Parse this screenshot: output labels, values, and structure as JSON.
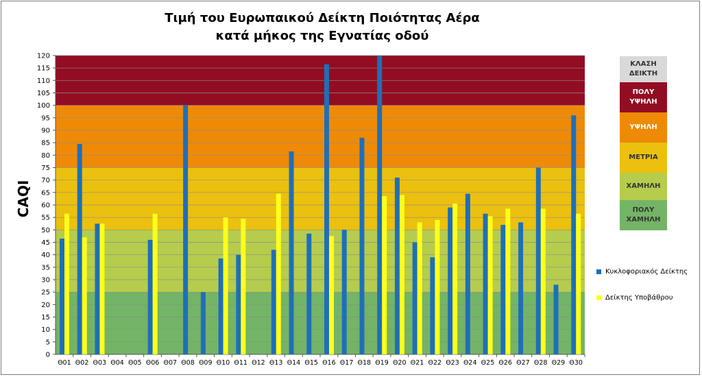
{
  "chart_data": {
    "type": "bar",
    "title": [
      "Τιμή του Ευρωπαικού Δείκτη Ποιότητας Αέρα",
      "κατά μήκος της Εγνατίας οδού"
    ],
    "ylabel": "CAQI",
    "ylim": [
      0,
      120
    ],
    "ytick_step": 5,
    "grid": true,
    "categories": [
      "Θ01",
      "Θ02",
      "Θ03",
      "Θ04",
      "Θ05",
      "Θ06",
      "Θ07",
      "Θ08",
      "Θ09",
      "Θ10",
      "Θ11",
      "Θ12",
      "Θ13",
      "Θ14",
      "Θ15",
      "Θ16",
      "Θ17",
      "Θ18",
      "Θ19",
      "Θ20",
      "Θ21",
      "Θ22",
      "Θ23",
      "Θ24",
      "Θ25",
      "Θ26",
      "Θ27",
      "Θ28",
      "Θ29",
      "Θ30"
    ],
    "series": [
      {
        "name": "Κυκλοφοριακός Δείκτης",
        "color": "#1f6fb8",
        "values": [
          46.5,
          84.5,
          52.5,
          null,
          null,
          46,
          null,
          100,
          25,
          38.5,
          40,
          null,
          42,
          81.5,
          48.5,
          116.5,
          50,
          87,
          120,
          71,
          45,
          39,
          59,
          64.5,
          56.5,
          52,
          53,
          75,
          28,
          96
        ]
      },
      {
        "name": "Δείκτης Υποβάθρου",
        "color": "#ffff1a",
        "values": [
          56.5,
          47,
          52.5,
          null,
          null,
          56.5,
          null,
          null,
          null,
          55,
          54.5,
          null,
          64.5,
          null,
          null,
          47.5,
          null,
          null,
          63.5,
          64,
          53,
          54,
          60.5,
          null,
          55.5,
          58.5,
          null,
          58.5,
          null,
          56.5
        ]
      }
    ],
    "bands": [
      {
        "from": 0,
        "to": 25,
        "color": "#74b466"
      },
      {
        "from": 25,
        "to": 50,
        "color": "#b6cc4c"
      },
      {
        "from": 50,
        "to": 75,
        "color": "#ecc00e"
      },
      {
        "from": 75,
        "to": 100,
        "color": "#ef8a06"
      },
      {
        "from": 100,
        "to": 120,
        "color": "#930d22"
      }
    ],
    "legend": "right",
    "class_legend": [
      {
        "lines": [
          "ΚΛΑΣΗ",
          "ΔΕΙΚΤΗ"
        ],
        "bg": "#d9d9d9",
        "fg": "#333333"
      },
      {
        "lines": [
          "ΠΟΛΥ",
          "ΥΨΗΛΗ"
        ],
        "bg": "#930d22",
        "fg": "#ffffff"
      },
      {
        "lines": [
          "ΥΨΗΛΗ"
        ],
        "bg": "#ef8a06",
        "fg": "#ffffff"
      },
      {
        "lines": [
          "ΜΕΤΡΙΑ"
        ],
        "bg": "#ecc00e",
        "fg": "#333333"
      },
      {
        "lines": [
          "ΧΑΜΗΛΗ"
        ],
        "bg": "#b6cc4c",
        "fg": "#333333"
      },
      {
        "lines": [
          "ΠΟΛΥ",
          "ΧΑΜΗΛΗ"
        ],
        "bg": "#74b466",
        "fg": "#333333"
      }
    ]
  }
}
